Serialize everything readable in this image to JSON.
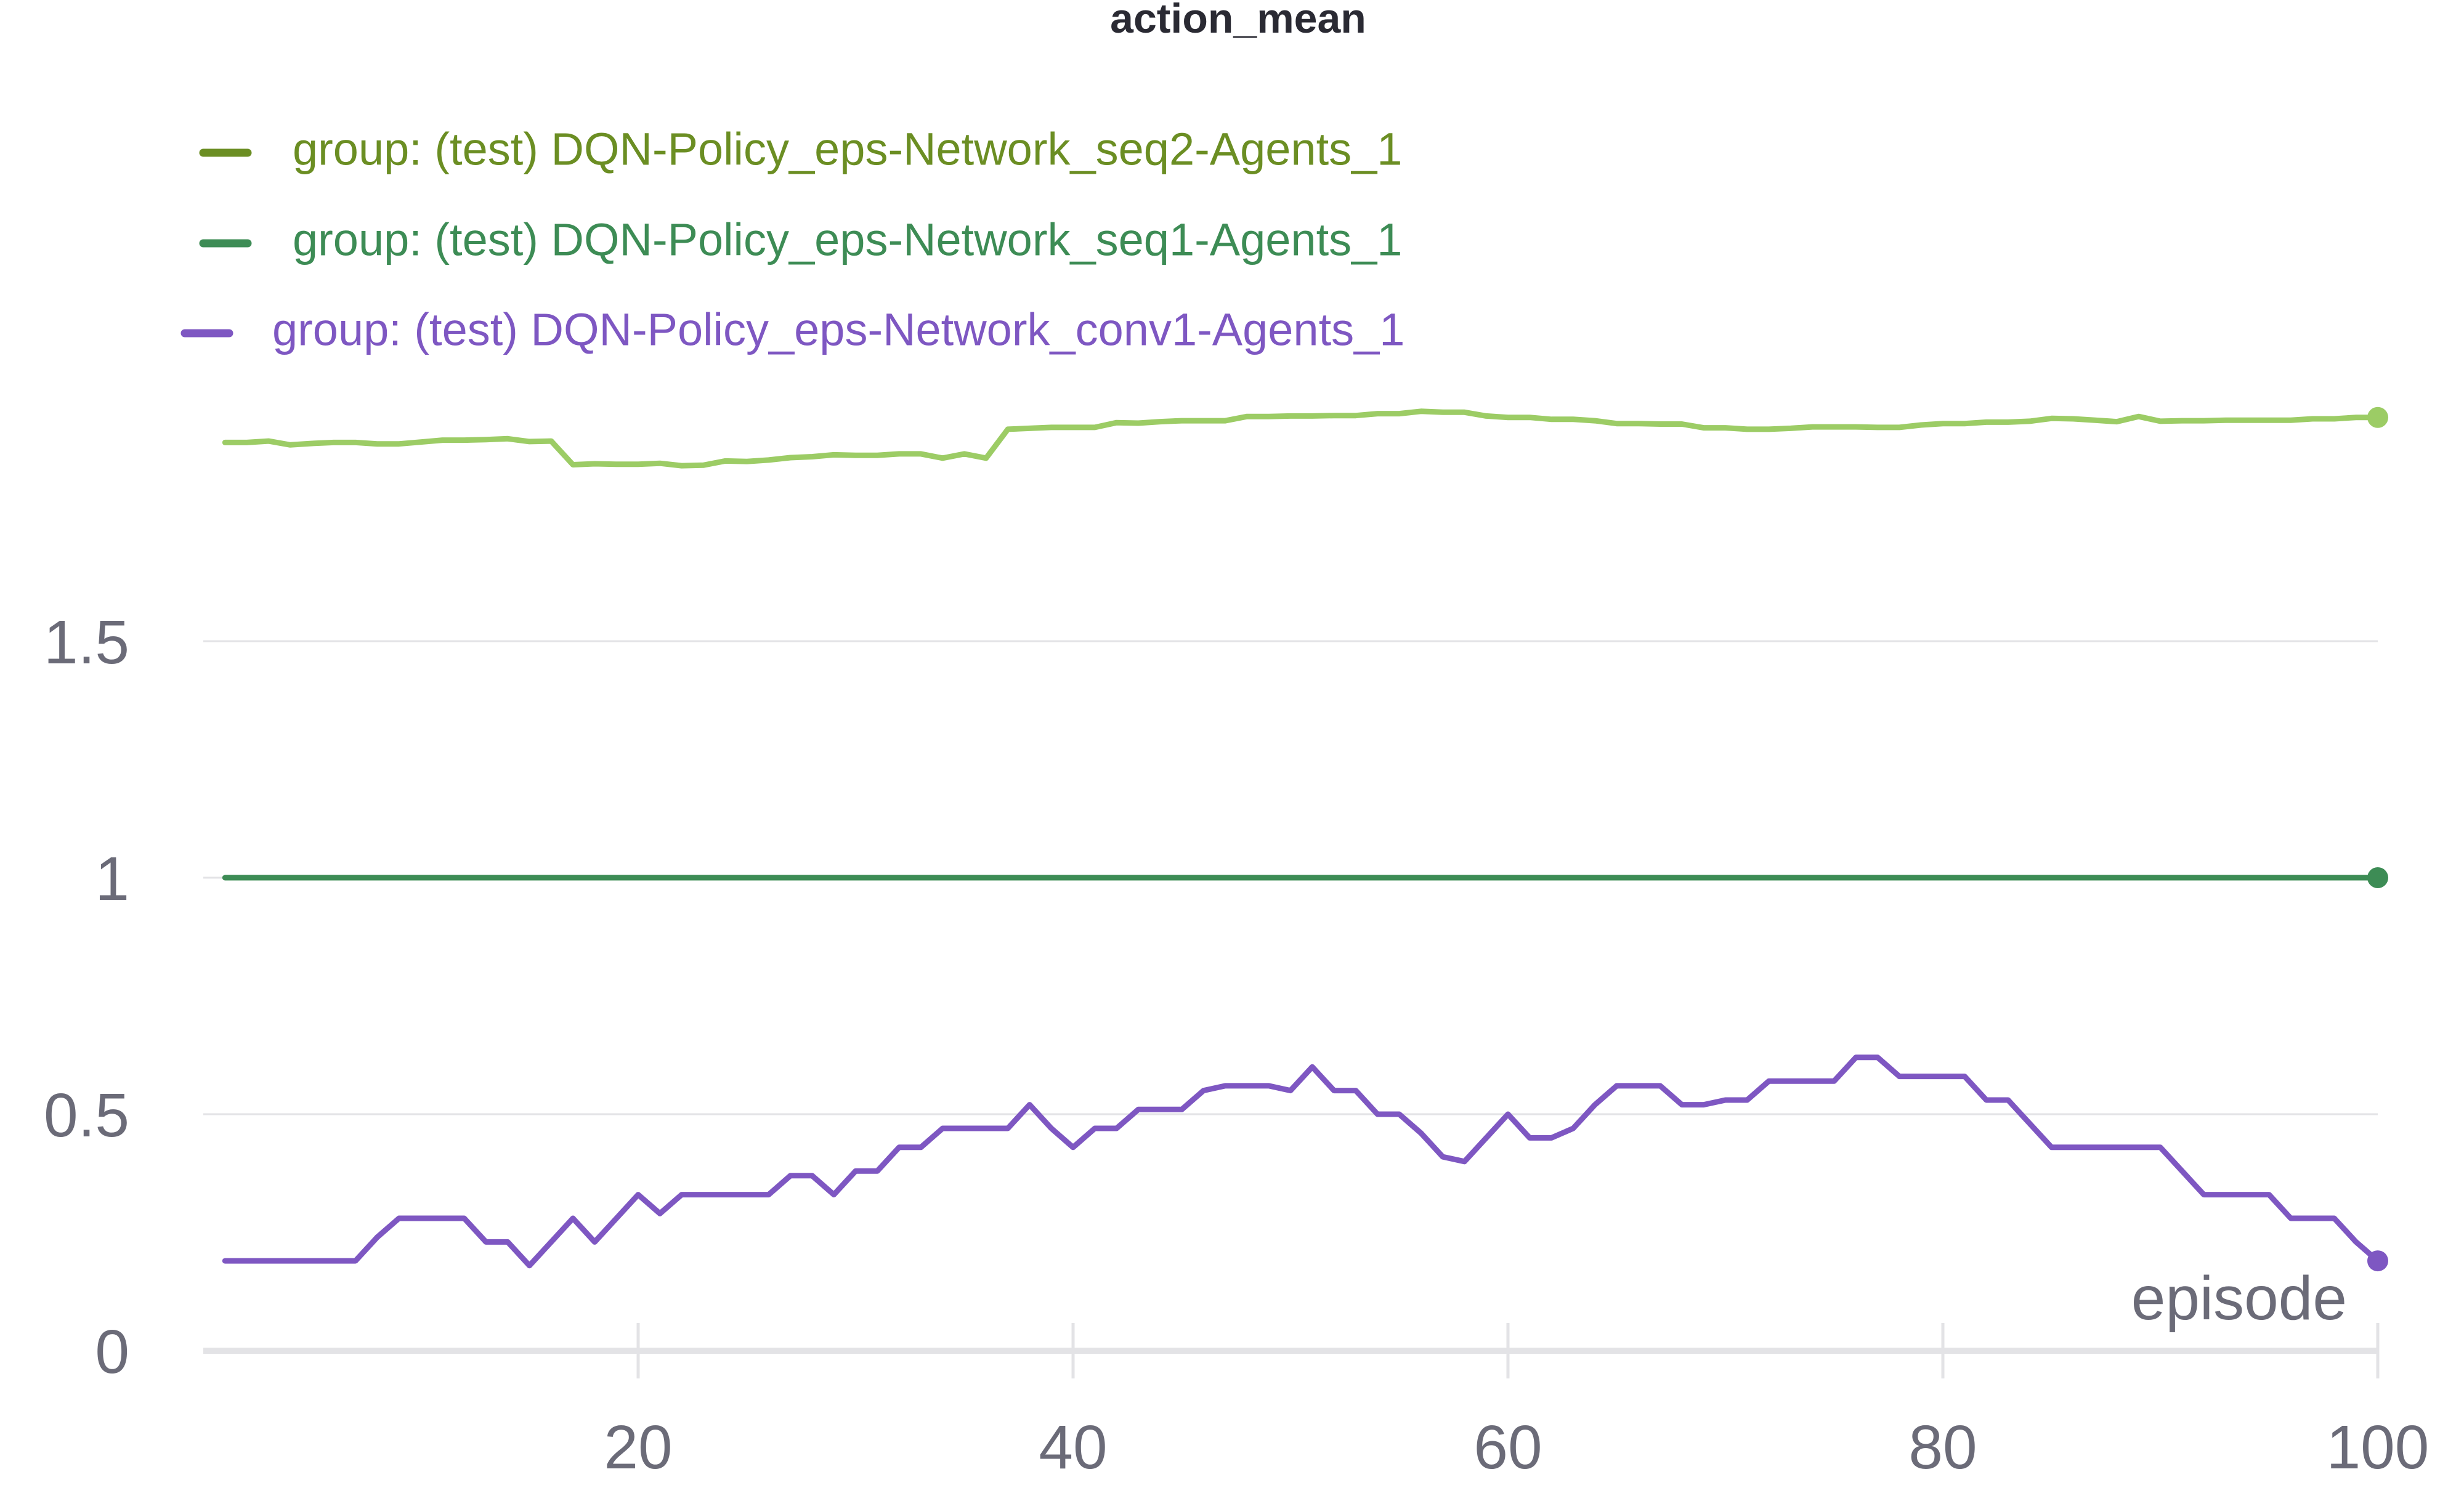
{
  "chart_data": {
    "type": "line",
    "title": "action_mean",
    "xlabel": "episode",
    "ylabel": "",
    "xlim": [
      0,
      100
    ],
    "ylim": [
      0,
      1.5
    ],
    "xticks": [
      20,
      40,
      60,
      80,
      100
    ],
    "yticks": [
      0,
      0.5,
      1,
      1.5
    ],
    "grid": true,
    "legend_position": "top-left",
    "series": [
      {
        "name": "group: (test) DQN-Policy_eps-Network_seq2-Agents_1",
        "legend_color": "#6b8e23",
        "line_color": "#9ccc65",
        "x": [
          1,
          2,
          3,
          4,
          5,
          6,
          7,
          8,
          9,
          10,
          11,
          12,
          13,
          14,
          15,
          16,
          17,
          18,
          19,
          20,
          21,
          22,
          23,
          24,
          25,
          26,
          27,
          28,
          29,
          30,
          31,
          32,
          33,
          34,
          35,
          36,
          37,
          38,
          39,
          40,
          41,
          42,
          43,
          44,
          45,
          46,
          47,
          48,
          49,
          50,
          51,
          52,
          53,
          54,
          55,
          56,
          57,
          58,
          59,
          60,
          61,
          62,
          63,
          64,
          65,
          66,
          67,
          68,
          69,
          70,
          71,
          72,
          73,
          74,
          75,
          76,
          77,
          78,
          79,
          80,
          81,
          82,
          83,
          84,
          85,
          86,
          87,
          88,
          89,
          90,
          91,
          92,
          93,
          94,
          95,
          96,
          97,
          98,
          99,
          100
        ],
        "y": [
          1.92,
          1.92,
          1.923,
          1.915,
          1.918,
          1.92,
          1.92,
          1.917,
          1.917,
          1.921,
          1.925,
          1.925,
          1.926,
          1.928,
          1.922,
          1.923,
          1.873,
          1.875,
          1.874,
          1.874,
          1.876,
          1.871,
          1.872,
          1.881,
          1.88,
          1.883,
          1.888,
          1.89,
          1.894,
          1.893,
          1.893,
          1.896,
          1.896,
          1.887,
          1.896,
          1.887,
          1.948,
          1.95,
          1.952,
          1.952,
          1.952,
          1.962,
          1.961,
          1.964,
          1.966,
          1.966,
          1.966,
          1.975,
          1.975,
          1.976,
          1.976,
          1.977,
          1.977,
          1.981,
          1.981,
          1.986,
          1.984,
          1.984,
          1.976,
          1.973,
          1.973,
          1.969,
          1.969,
          1.966,
          1.96,
          1.96,
          1.959,
          1.959,
          1.951,
          1.951,
          1.948,
          1.948,
          1.95,
          1.953,
          1.953,
          1.953,
          1.952,
          1.952,
          1.957,
          1.96,
          1.96,
          1.963,
          1.963,
          1.965,
          1.971,
          1.97,
          1.967,
          1.964,
          1.975,
          1.965,
          1.966,
          1.966,
          1.967,
          1.967,
          1.967,
          1.967,
          1.97,
          1.97,
          1.973,
          1.973
        ]
      },
      {
        "name": "group: (test) DQN-Policy_eps-Network_seq1-Agents_1",
        "legend_color": "#3d8c55",
        "line_color": "#3d8c55",
        "x": [
          1,
          100
        ],
        "y": [
          1,
          1
        ]
      },
      {
        "name": "group: (test) DQN-Policy_eps-Network_conv1-Agents_1",
        "legend_color": "#7e57c2",
        "line_color": "#7e57c2",
        "x": [
          1,
          2,
          3,
          4,
          5,
          6,
          7,
          8,
          9,
          10,
          11,
          12,
          13,
          14,
          15,
          16,
          17,
          18,
          19,
          20,
          21,
          22,
          23,
          24,
          25,
          26,
          27,
          28,
          29,
          30,
          31,
          32,
          33,
          34,
          35,
          36,
          37,
          38,
          39,
          40,
          41,
          42,
          43,
          44,
          45,
          46,
          47,
          48,
          49,
          50,
          51,
          52,
          53,
          54,
          55,
          56,
          57,
          58,
          59,
          60,
          61,
          62,
          63,
          64,
          65,
          66,
          67,
          68,
          69,
          70,
          71,
          72,
          73,
          74,
          75,
          76,
          77,
          78,
          79,
          80,
          81,
          82,
          83,
          84,
          85,
          86,
          87,
          88,
          89,
          90,
          91,
          92,
          93,
          94,
          95,
          96,
          97,
          98,
          99,
          100
        ],
        "y": [
          0.19,
          0.19,
          0.19,
          0.19,
          0.19,
          0.19,
          0.19,
          0.24,
          0.28,
          0.28,
          0.28,
          0.28,
          0.23,
          0.23,
          0.18,
          0.23,
          0.28,
          0.23,
          0.28,
          0.33,
          0.29,
          0.33,
          0.33,
          0.33,
          0.33,
          0.33,
          0.37,
          0.37,
          0.33,
          0.38,
          0.38,
          0.43,
          0.43,
          0.47,
          0.47,
          0.47,
          0.47,
          0.52,
          0.47,
          0.43,
          0.47,
          0.47,
          0.51,
          0.51,
          0.51,
          0.55,
          0.56,
          0.56,
          0.56,
          0.55,
          0.6,
          0.55,
          0.55,
          0.5,
          0.5,
          0.46,
          0.41,
          0.4,
          0.45,
          0.5,
          0.45,
          0.45,
          0.47,
          0.52,
          0.56,
          0.56,
          0.56,
          0.52,
          0.52,
          0.53,
          0.53,
          0.57,
          0.57,
          0.57,
          0.57,
          0.62,
          0.62,
          0.58,
          0.58,
          0.58,
          0.58,
          0.53,
          0.53,
          0.48,
          0.43,
          0.43,
          0.43,
          0.43,
          0.43,
          0.43,
          0.38,
          0.33,
          0.33,
          0.33,
          0.33,
          0.28,
          0.28,
          0.28,
          0.23,
          0.19
        ]
      }
    ]
  }
}
